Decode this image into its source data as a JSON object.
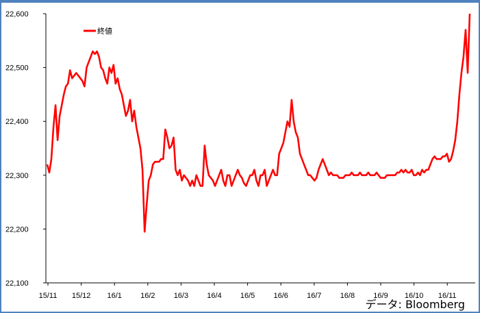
{
  "chart_data": {
    "type": "line",
    "ylim": [
      22100,
      22600
    ],
    "y_ticks": [
      "22,100",
      "22,200",
      "22,300",
      "22,400",
      "22,500",
      "22,600"
    ],
    "x_ticks": [
      "15/11",
      "15/12",
      "16/1",
      "16/2",
      "16/3",
      "16/4",
      "16/5",
      "16/6",
      "16/7",
      "16/8",
      "16/9",
      "16/10",
      "16/11"
    ],
    "legend": {
      "position": "top-left"
    },
    "series": [
      {
        "name": "終値",
        "color": "#ff0000",
        "values": [
          22320,
          22305,
          22330,
          22390,
          22430,
          22365,
          22410,
          22430,
          22450,
          22465,
          22470,
          22495,
          22480,
          22485,
          22490,
          22485,
          22480,
          22475,
          22465,
          22500,
          22510,
          22520,
          22530,
          22525,
          22530,
          22520,
          22500,
          22495,
          22480,
          22470,
          22500,
          22490,
          22505,
          22470,
          22480,
          22460,
          22450,
          22430,
          22410,
          22420,
          22440,
          22400,
          22420,
          22390,
          22370,
          22350,
          22310,
          22195,
          22245,
          22290,
          22300,
          22320,
          22325,
          22325,
          22325,
          22330,
          22330,
          22385,
          22370,
          22350,
          22355,
          22370,
          22310,
          22300,
          22310,
          22290,
          22300,
          22295,
          22290,
          22280,
          22290,
          22280,
          22300,
          22290,
          22280,
          22280,
          22355,
          22320,
          22300,
          22295,
          22290,
          22280,
          22290,
          22300,
          22310,
          22290,
          22280,
          22300,
          22300,
          22280,
          22290,
          22300,
          22310,
          22300,
          22295,
          22285,
          22280,
          22290,
          22300,
          22300,
          22310,
          22290,
          22280,
          22300,
          22300,
          22310,
          22280,
          22290,
          22300,
          22310,
          22300,
          22300,
          22340,
          22350,
          22360,
          22380,
          22400,
          22390,
          22440,
          22400,
          22380,
          22370,
          22340,
          22330,
          22320,
          22310,
          22300,
          22300,
          22295,
          22290,
          22295,
          22310,
          22320,
          22330,
          22320,
          22310,
          22300,
          22305,
          22300,
          22300,
          22300,
          22295,
          22295,
          22295,
          22300,
          22300,
          22300,
          22305,
          22300,
          22300,
          22300,
          22305,
          22300,
          22300,
          22300,
          22305,
          22300,
          22300,
          22300,
          22305,
          22300,
          22295,
          22295,
          22295,
          22300,
          22300,
          22300,
          22300,
          22300,
          22305,
          22305,
          22310,
          22305,
          22310,
          22305,
          22305,
          22310,
          22300,
          22300,
          22305,
          22300,
          22310,
          22305,
          22310,
          22310,
          22320,
          22330,
          22335,
          22330,
          22330,
          22330,
          22335,
          22335,
          22340,
          22325,
          22330,
          22345,
          22365,
          22400,
          22450,
          22490,
          22520,
          22570,
          22490,
          22600
        ]
      }
    ]
  },
  "source_text": "データ: Bloomberg"
}
